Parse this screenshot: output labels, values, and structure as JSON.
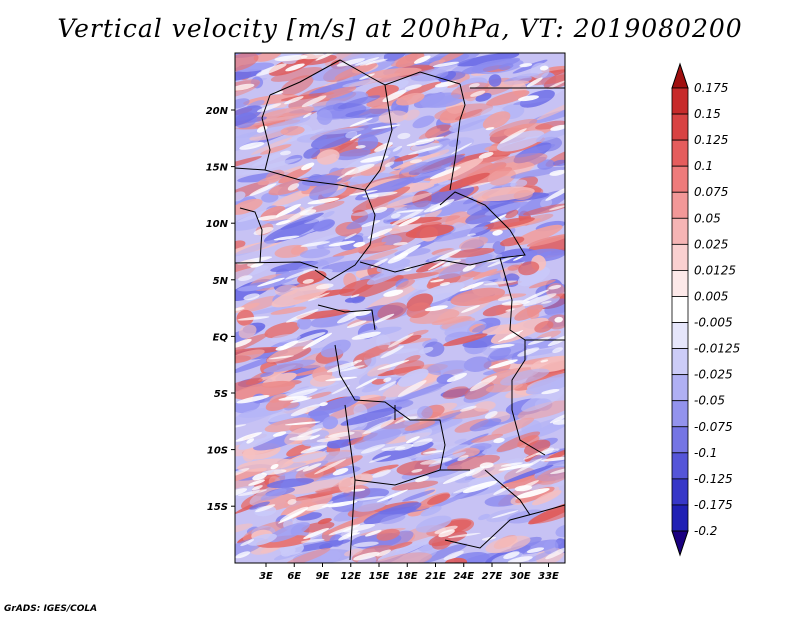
{
  "title": "Vertical velocity [m/s] at 200hPa, VT: 2019080200",
  "footer": "GrADS: IGES/COLA",
  "map": {
    "lon_labels": [
      "3E",
      "6E",
      "9E",
      "12E",
      "15E",
      "18E",
      "21E",
      "24E",
      "27E",
      "30E",
      "33E"
    ],
    "lat_labels": [
      "20N",
      "15N",
      "10N",
      "5N",
      "EQ",
      "5S",
      "10S",
      "15S"
    ]
  },
  "colorbar": {
    "labels": [
      "0.175",
      "0.15",
      "0.125",
      "0.1",
      "0.075",
      "0.05",
      "0.025",
      "0.0125",
      "0.005",
      "-0.005",
      "-0.0125",
      "-0.025",
      "-0.05",
      "-0.075",
      "-0.1",
      "-0.125",
      "-0.175",
      "-0.2"
    ],
    "colors": [
      "#b11919",
      "#c72b2b",
      "#d84343",
      "#e55d5d",
      "#ee7b7b",
      "#f29898",
      "#f6b5b5",
      "#fad0d0",
      "#fde9e9",
      "#ffffff",
      "#e6e6fb",
      "#ccccf7",
      "#b0b0f3",
      "#9393ed",
      "#7575e4",
      "#5555d8",
      "#3737c8",
      "#2020b4",
      "#0c0c96"
    ],
    "arrow_top": "#a01010",
    "arrow_bottom": "#1a0080"
  },
  "colors": {
    "field_red": "#e78080",
    "field_blue": "#7d7df0",
    "field_white": "#f4f0fb"
  }
}
